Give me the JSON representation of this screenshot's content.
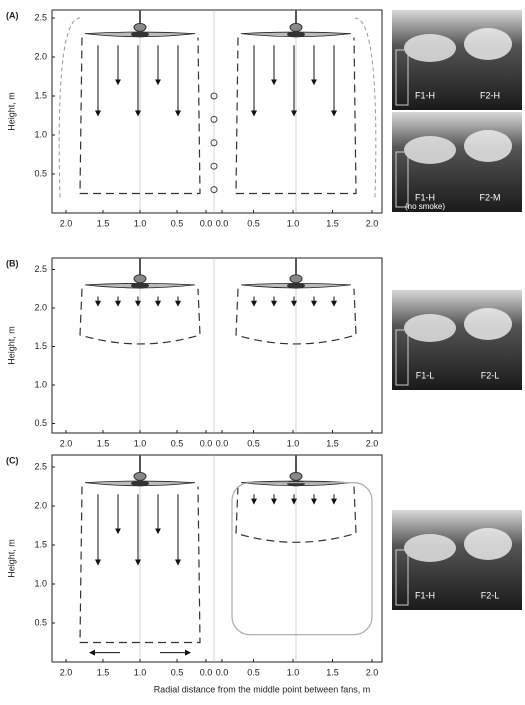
{
  "panels": [
    {
      "label": "(A)",
      "y_axis_label": "Height, m",
      "y_ticks": [
        "2.5",
        "2.0",
        "1.5",
        "1.0",
        "0.5"
      ],
      "x_ticks": [
        "2.0",
        "1.5",
        "1.0",
        "0.5",
        "0.0",
        "0.0",
        "0.5",
        "1.0",
        "1.5",
        "2.0"
      ],
      "photos": [
        {
          "left": "F1-H",
          "right": "F2-H"
        },
        {
          "left": "F1-H",
          "left_note": "(no smoke)",
          "right": "F2-M"
        }
      ]
    },
    {
      "label": "(B)",
      "y_axis_label": "Height, m",
      "y_ticks": [
        "2.5",
        "2.0",
        "1.5",
        "1.0",
        "0.5"
      ],
      "x_ticks": [
        "2.0",
        "1.5",
        "1.0",
        "0.5",
        "0.0",
        "0.0",
        "0.5",
        "1.0",
        "1.5",
        "2.0"
      ],
      "photos": [
        {
          "left": "F1-L",
          "right": "F2-L"
        }
      ]
    },
    {
      "label": "(C)",
      "y_axis_label": "Height, m",
      "y_ticks": [
        "2.5",
        "2.0",
        "1.5",
        "1.0",
        "0.5"
      ],
      "x_ticks": [
        "2.0",
        "1.5",
        "1.0",
        "0.5",
        "0.0",
        "0.0",
        "0.5",
        "1.0",
        "1.5",
        "2.0"
      ],
      "photos": [
        {
          "left": "F1-H",
          "right": "F2-L"
        }
      ]
    }
  ],
  "x_axis_label": "Radial distance from the middle point between fans, m"
}
